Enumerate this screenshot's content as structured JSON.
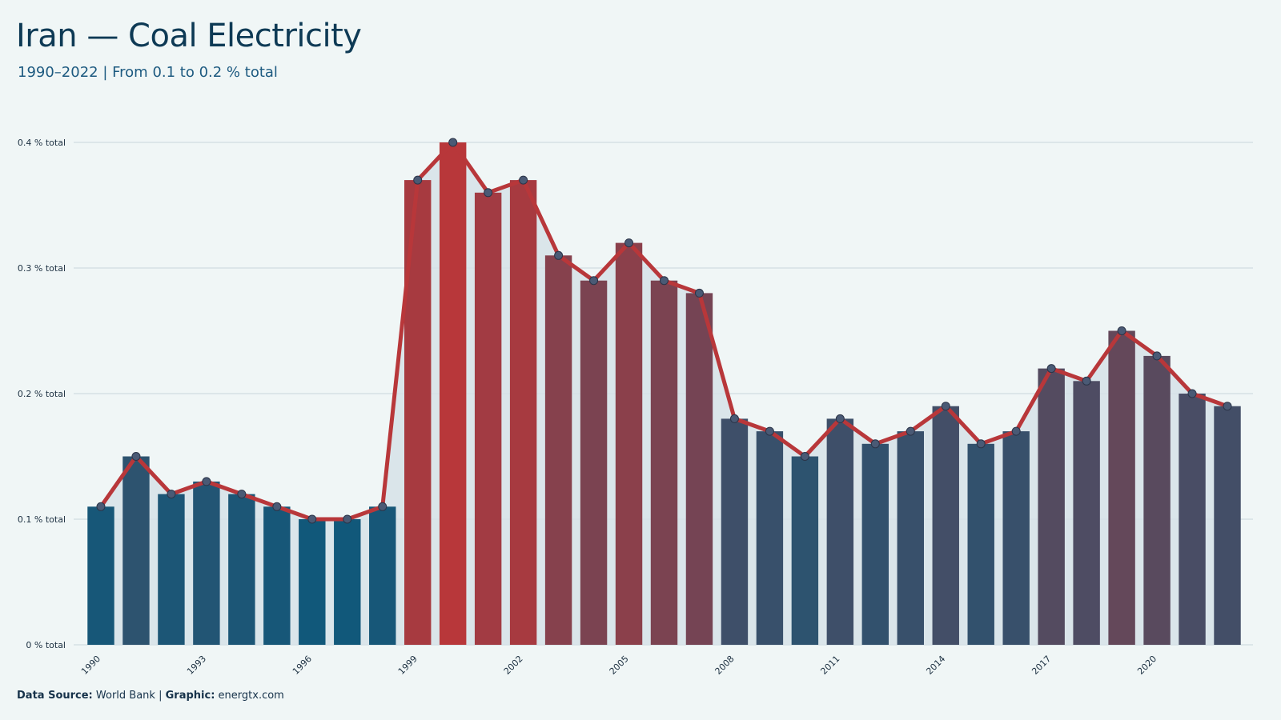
{
  "header": {
    "title": "Iran — Coal Electricity",
    "subtitle": "1990–2022 | From 0.1 to 0.2 % total"
  },
  "footer": {
    "source_label": "Data Source:",
    "source_value": "World Bank",
    "separator": "|",
    "graphic_label": "Graphic:",
    "graphic_value": "energtx.com"
  },
  "colors": {
    "background": "#f0f6f6",
    "line": "#b8373a",
    "low": "#11587a",
    "high": "#b8373a",
    "area": "#d6e2e7",
    "grid": "#c9d6dc",
    "marker": "#4a5a75"
  },
  "chart_data": {
    "type": "bar",
    "title": "Iran — Coal Electricity",
    "xlabel": "",
    "ylabel": "",
    "y_unit": "% total",
    "ylim": [
      0,
      0.4
    ],
    "yticks": [
      0,
      0.1,
      0.2,
      0.3,
      0.4
    ],
    "ytick_labels": [
      "0 % total",
      "0.1 % total",
      "0.2 % total",
      "0.3 % total",
      "0.4 % total"
    ],
    "xtick_labels": [
      "1990",
      "1993",
      "1996",
      "1999",
      "2002",
      "2005",
      "2008",
      "2011",
      "2014",
      "2017",
      "2020"
    ],
    "grid": true,
    "legend": "none",
    "x": [
      1990,
      1991,
      1992,
      1993,
      1994,
      1995,
      1996,
      1997,
      1998,
      1999,
      2000,
      2001,
      2002,
      2003,
      2004,
      2005,
      2006,
      2007,
      2008,
      2009,
      2010,
      2011,
      2012,
      2013,
      2014,
      2015,
      2016,
      2017,
      2018,
      2019,
      2020,
      2021,
      2022
    ],
    "values": [
      0.11,
      0.15,
      0.12,
      0.13,
      0.12,
      0.11,
      0.1,
      0.1,
      0.11,
      0.37,
      0.4,
      0.36,
      0.37,
      0.31,
      0.29,
      0.32,
      0.29,
      0.28,
      0.18,
      0.17,
      0.15,
      0.18,
      0.16,
      0.17,
      0.19,
      0.16,
      0.17,
      0.22,
      0.21,
      0.25,
      0.23,
      0.2,
      0.19
    ],
    "overlay": "line with markers"
  }
}
